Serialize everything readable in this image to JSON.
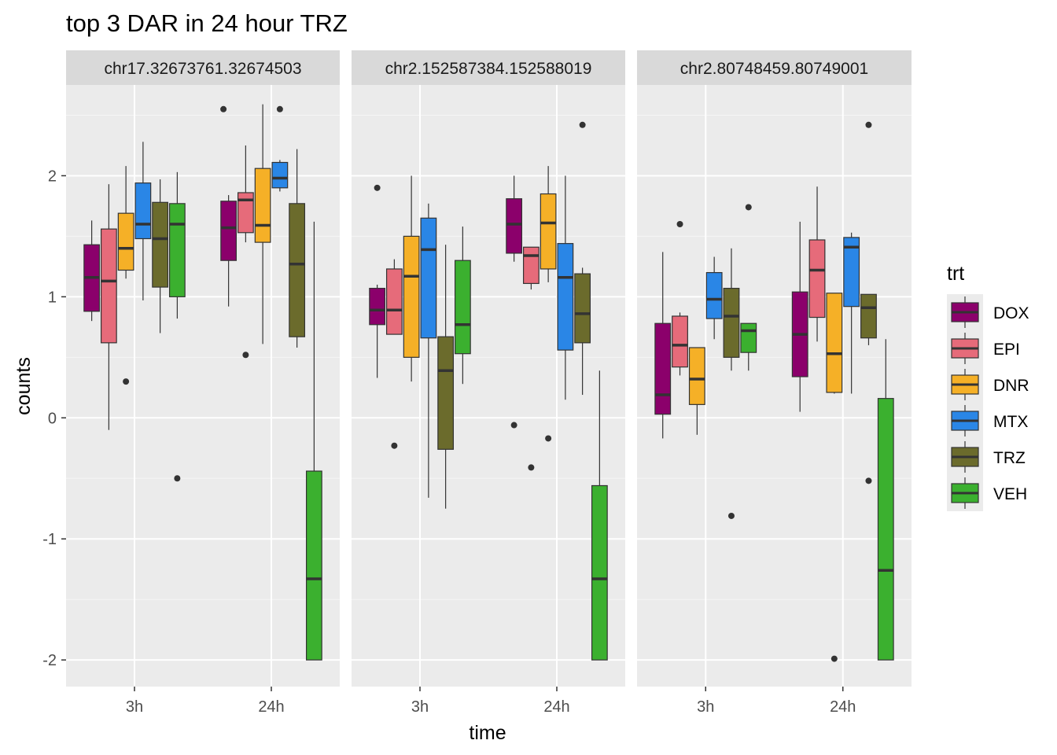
{
  "chart_data": {
    "type": "box",
    "title": "top 3 DAR in 24 hour TRZ",
    "xlabel": "time",
    "ylabel": "counts",
    "ylim": [
      -2.22,
      2.75
    ],
    "y_ticks": [
      -2,
      -1,
      0,
      1,
      2
    ],
    "x_categories": [
      "3h",
      "24h"
    ],
    "grid": true,
    "legend": {
      "title": "trt",
      "position": "right",
      "items": [
        {
          "name": "DOX",
          "color": "#8B006B"
        },
        {
          "name": "EPI",
          "color": "#E66B7A"
        },
        {
          "name": "DNR",
          "color": "#F5B027"
        },
        {
          "name": "MTX",
          "color": "#2A86E6"
        },
        {
          "name": "TRZ",
          "color": "#6B6B2C"
        },
        {
          "name": "VEH",
          "color": "#3BB02F"
        }
      ]
    },
    "panels": [
      {
        "label": "chr17.32673761.32674503",
        "groups": [
          {
            "time": "3h",
            "boxes": [
              {
                "trt": "DOX",
                "whisker_low": 0.8,
                "q1": 0.88,
                "median": 1.16,
                "q3": 1.43,
                "whisker_high": 1.63,
                "outliers": []
              },
              {
                "trt": "EPI",
                "whisker_low": -0.1,
                "q1": 0.62,
                "median": 1.13,
                "q3": 1.56,
                "whisker_high": 1.93,
                "outliers": []
              },
              {
                "trt": "DNR",
                "whisker_low": 1.15,
                "q1": 1.22,
                "median": 1.4,
                "q3": 1.69,
                "whisker_high": 2.08,
                "outliers": [
                  0.3
                ]
              },
              {
                "trt": "MTX",
                "whisker_low": 0.97,
                "q1": 1.48,
                "median": 1.6,
                "q3": 1.94,
                "whisker_high": 2.28,
                "outliers": []
              },
              {
                "trt": "TRZ",
                "whisker_low": 0.7,
                "q1": 1.08,
                "median": 1.48,
                "q3": 1.78,
                "whisker_high": 1.97,
                "outliers": []
              },
              {
                "trt": "VEH",
                "whisker_low": 0.82,
                "q1": 1.0,
                "median": 1.6,
                "q3": 1.77,
                "whisker_high": 2.03,
                "outliers": [
                  -0.5
                ]
              }
            ]
          },
          {
            "time": "24h",
            "boxes": [
              {
                "trt": "DOX",
                "whisker_low": 0.92,
                "q1": 1.3,
                "median": 1.57,
                "q3": 1.79,
                "whisker_high": 1.84,
                "outliers": []
              },
              {
                "trt": "EPI",
                "whisker_low": 1.45,
                "q1": 1.53,
                "median": 1.8,
                "q3": 1.86,
                "whisker_high": 2.25,
                "outliers": [
                  0.52
                ]
              },
              {
                "trt": "DNR",
                "whisker_low": 0.61,
                "q1": 1.45,
                "median": 1.59,
                "q3": 2.06,
                "whisker_high": 2.59,
                "outliers": []
              },
              {
                "trt": "MTX",
                "whisker_low": 1.87,
                "q1": 1.9,
                "median": 1.98,
                "q3": 2.11,
                "whisker_high": 2.13,
                "outliers": [
                  2.55
                ]
              },
              {
                "trt": "TRZ",
                "whisker_low": 0.58,
                "q1": 0.67,
                "median": 1.27,
                "q3": 1.77,
                "whisker_high": 2.22,
                "outliers": []
              },
              {
                "trt": "VEH",
                "whisker_low": -2.0,
                "q1": -2.0,
                "median": -1.33,
                "q3": -0.44,
                "whisker_high": 1.62,
                "outliers": []
              }
            ]
          }
        ],
        "extra_outliers": [
          {
            "time": "24h",
            "x_offset_groups": -3.0,
            "value": 2.55
          }
        ]
      },
      {
        "label": "chr2.152587384.152588019",
        "groups": [
          {
            "time": "3h",
            "boxes": [
              {
                "trt": "DOX",
                "whisker_low": 0.33,
                "q1": 0.77,
                "median": 0.89,
                "q3": 1.07,
                "whisker_high": 1.1,
                "outliers": [
                  1.9
                ]
              },
              {
                "trt": "EPI",
                "whisker_low": 0.69,
                "q1": 0.69,
                "median": 0.89,
                "q3": 1.23,
                "whisker_high": 1.31,
                "outliers": [
                  -0.23
                ]
              },
              {
                "trt": "DNR",
                "whisker_low": 0.3,
                "q1": 0.5,
                "median": 1.17,
                "q3": 1.5,
                "whisker_high": 2.0,
                "outliers": []
              },
              {
                "trt": "MTX",
                "whisker_low": -0.66,
                "q1": 0.66,
                "median": 1.39,
                "q3": 1.65,
                "whisker_high": 1.77,
                "outliers": []
              },
              {
                "trt": "TRZ",
                "whisker_low": -0.75,
                "q1": -0.26,
                "median": 0.39,
                "q3": 0.67,
                "whisker_high": 1.43,
                "outliers": []
              },
              {
                "trt": "VEH",
                "whisker_low": 0.28,
                "q1": 0.53,
                "median": 0.77,
                "q3": 1.3,
                "whisker_high": 1.58,
                "outliers": []
              }
            ]
          },
          {
            "time": "24h",
            "boxes": [
              {
                "trt": "DOX",
                "whisker_low": 1.29,
                "q1": 1.36,
                "median": 1.6,
                "q3": 1.81,
                "whisker_high": 2.0,
                "outliers": [
                  -0.06
                ]
              },
              {
                "trt": "EPI",
                "whisker_low": 1.06,
                "q1": 1.11,
                "median": 1.34,
                "q3": 1.41,
                "whisker_high": 1.41,
                "outliers": [
                  -0.41
                ]
              },
              {
                "trt": "DNR",
                "whisker_low": 1.12,
                "q1": 1.23,
                "median": 1.61,
                "q3": 1.85,
                "whisker_high": 2.08,
                "outliers": [
                  -0.17
                ]
              },
              {
                "trt": "MTX",
                "whisker_low": 0.15,
                "q1": 0.56,
                "median": 1.16,
                "q3": 1.44,
                "whisker_high": 2.0,
                "outliers": []
              },
              {
                "trt": "TRZ",
                "whisker_low": 0.19,
                "q1": 0.62,
                "median": 0.86,
                "q3": 1.19,
                "whisker_high": 1.24,
                "outliers": [
                  2.42
                ]
              },
              {
                "trt": "VEH",
                "whisker_low": -2.0,
                "q1": -2.0,
                "median": -1.33,
                "q3": -0.56,
                "whisker_high": 0.39,
                "outliers": []
              }
            ]
          }
        ]
      },
      {
        "label": "chr2.80748459.80749001",
        "groups": [
          {
            "time": "3h",
            "boxes": [
              {
                "trt": "DOX",
                "whisker_low": -0.17,
                "q1": 0.03,
                "median": 0.19,
                "q3": 0.78,
                "whisker_high": 1.37,
                "outliers": []
              },
              {
                "trt": "EPI",
                "whisker_low": 0.35,
                "q1": 0.42,
                "median": 0.6,
                "q3": 0.84,
                "whisker_high": 0.87,
                "outliers": [
                  1.6
                ]
              },
              {
                "trt": "DNR",
                "whisker_low": -0.14,
                "q1": 0.11,
                "median": 0.32,
                "q3": 0.58,
                "whisker_high": 0.58,
                "outliers": []
              },
              {
                "trt": "MTX",
                "whisker_low": 0.65,
                "q1": 0.82,
                "median": 0.98,
                "q3": 1.2,
                "whisker_high": 1.33,
                "outliers": []
              },
              {
                "trt": "TRZ",
                "whisker_low": 0.39,
                "q1": 0.5,
                "median": 0.84,
                "q3": 1.07,
                "whisker_high": 1.4,
                "outliers": [
                  -0.81
                ]
              },
              {
                "trt": "VEH",
                "whisker_low": 0.39,
                "q1": 0.54,
                "median": 0.72,
                "q3": 0.78,
                "whisker_high": 0.78,
                "outliers": [
                  1.74
                ]
              }
            ]
          },
          {
            "time": "24h",
            "boxes": [
              {
                "trt": "DOX",
                "whisker_low": 0.05,
                "q1": 0.34,
                "median": 0.69,
                "q3": 1.04,
                "whisker_high": 1.62,
                "outliers": []
              },
              {
                "trt": "EPI",
                "whisker_low": 0.63,
                "q1": 0.83,
                "median": 1.22,
                "q3": 1.47,
                "whisker_high": 1.91,
                "outliers": []
              },
              {
                "trt": "DNR",
                "whisker_low": 0.2,
                "q1": 0.21,
                "median": 0.53,
                "q3": 1.03,
                "whisker_high": 1.03,
                "outliers": [
                  -1.99
                ]
              },
              {
                "trt": "MTX",
                "whisker_low": 0.2,
                "q1": 0.92,
                "median": 1.41,
                "q3": 1.49,
                "whisker_high": 1.53,
                "outliers": []
              },
              {
                "trt": "TRZ",
                "whisker_low": 0.6,
                "q1": 0.66,
                "median": 0.91,
                "q3": 1.02,
                "whisker_high": 1.02,
                "outliers": [
                  2.42,
                  -0.52
                ]
              },
              {
                "trt": "VEH",
                "whisker_low": -2.0,
                "q1": -2.0,
                "median": -1.26,
                "q3": 0.16,
                "whisker_high": 0.65,
                "outliers": []
              }
            ]
          }
        ]
      }
    ]
  }
}
